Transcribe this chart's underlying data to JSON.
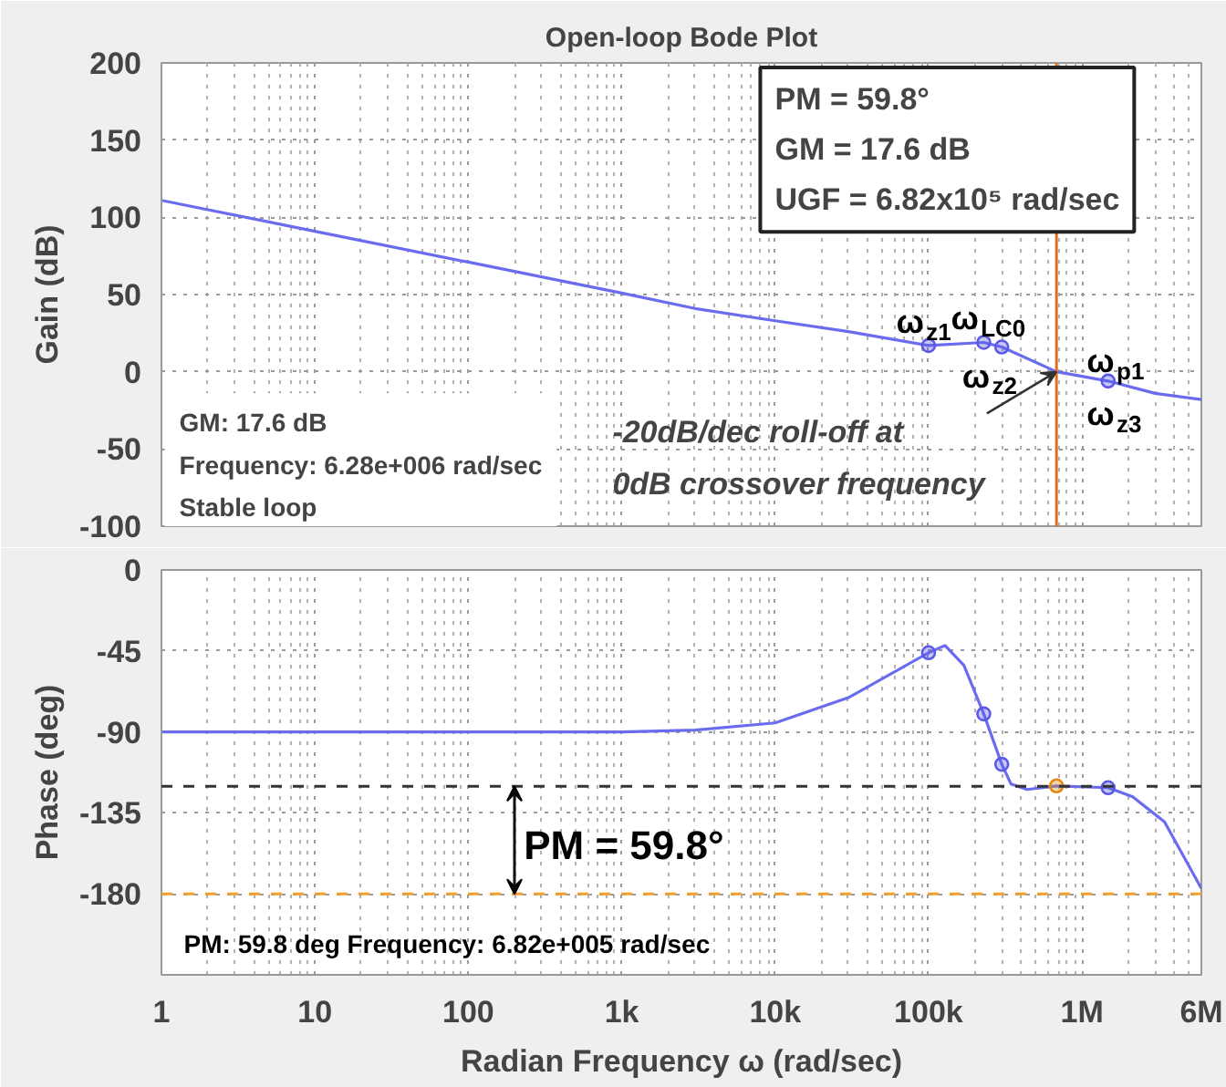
{
  "chart_data": [
    {
      "type": "line",
      "title": "Open-loop Bode Plot",
      "ylabel": "Gain (dB)",
      "log": "x",
      "xlim": [
        1,
        6000000
      ],
      "xticks": [
        {
          "value": 1,
          "label": null
        },
        {
          "value": 10,
          "label": null
        },
        {
          "value": 100,
          "label": null
        },
        {
          "value": 1000,
          "label": null
        },
        {
          "value": 10000,
          "label": null
        },
        {
          "value": 100000,
          "label": null
        },
        {
          "value": 1000000,
          "label": null
        },
        {
          "value": 6000000,
          "label": null
        }
      ],
      "ylim": [
        -100,
        200
      ],
      "yticks": [
        -100,
        -50,
        0,
        50,
        100,
        150,
        200
      ],
      "tick_labels": "y",
      "grid": true,
      "series": [
        {
          "color": "#6b6bf0",
          "x": [
            1,
            10,
            100,
            1000,
            3000,
            10000,
            30000,
            100000,
            229000,
            300000,
            682000,
            1480000,
            3000000,
            6000000
          ],
          "values": [
            111,
            91,
            71,
            51,
            41,
            33,
            26,
            17,
            19,
            16,
            0,
            -6,
            -14,
            -18
          ]
        },
        {
          "type": "scatter",
          "marker": "circle",
          "color": "#5a5ae6",
          "x": [
            100000,
            229000,
            300000,
            1480000
          ],
          "values": [
            17,
            19,
            16,
            -6
          ]
        }
      ],
      "ref_lines": [
        {
          "axis": "x",
          "value": 682000,
          "color": "#e07020"
        }
      ],
      "annotations": [
        "PM = 59.8°\nGM = 17.6 dB\nUGF = 6.82x10⁵ rad/sec",
        "GM: 17.6 dB\nFrequency: 6.28e+006 rad/sec\nStable loop",
        {
          "text": "-20dB/dec roll-off at\n0dB crossover frequency",
          "x": 682000,
          "y": 0
        },
        {
          "text": "ω$_{z1}$",
          "x": 100000,
          "y": 17
        },
        {
          "text": "ω$_{LC0}$",
          "x": 229000,
          "y": 19
        },
        {
          "text": "ω$_{z2}$",
          "x": 300000,
          "y": 16
        },
        {
          "text": "ω$_{p1}$",
          "x": 1480000,
          "y": -6
        },
        {
          "text": "ω$_{z3}$",
          "x": 1480000,
          "y": -6
        }
      ]
    },
    {
      "type": "line",
      "xlabel": "Radian Frequency ω (rad/sec)",
      "ylabel": "Phase (deg)",
      "log": "x",
      "xlim": [
        1,
        6000000
      ],
      "xticks": [
        1,
        10,
        100,
        {
          "value": 1000,
          "label": "1k"
        },
        {
          "value": 10000,
          "label": "10k"
        },
        {
          "value": 100000,
          "label": "100k"
        },
        {
          "value": 1000000,
          "label": "1M"
        },
        {
          "value": 6000000,
          "label": "6M"
        }
      ],
      "ylim": [
        -225,
        0
      ],
      "yticks": [
        0,
        -45,
        -90,
        -135,
        -180
      ],
      "grid": true,
      "series": [
        {
          "color": "#6b6bf0",
          "x": [
            1,
            10,
            100,
            1000,
            3000,
            10000,
            30000,
            100000,
            128000,
            170000,
            229000,
            300000,
            345000,
            440000,
            682000,
            1480000,
            2140000,
            3450000,
            6000000
          ],
          "values": [
            -90,
            -90,
            -90,
            -90,
            -89,
            -85,
            -71,
            -46,
            -42,
            -53,
            -80,
            -108,
            -119,
            -122,
            -120,
            -121,
            -126,
            -140,
            -177
          ]
        },
        {
          "type": "scatter",
          "marker": "circle",
          "color": "#5a5ae6",
          "x": [
            100000,
            229000,
            300000,
            1480000
          ],
          "values": [
            -46,
            -80,
            -108,
            -121
          ]
        },
        {
          "type": "scatter",
          "marker": "circle",
          "color": "#e08a10",
          "x": [
            682000
          ],
          "values": [
            -120
          ]
        }
      ],
      "ref_lines": [
        {
          "axis": "y",
          "value": -120.2,
          "color": "#333333",
          "line_style": "dashed"
        },
        {
          "axis": "y",
          "value": -180,
          "color": "#f0a030",
          "line_style": "dashed"
        }
      ],
      "annotations": [
        "PM = 59.8°",
        "PM: 59.8  deg   Frequency: 6.82e+005 rad/sec"
      ]
    }
  ]
}
